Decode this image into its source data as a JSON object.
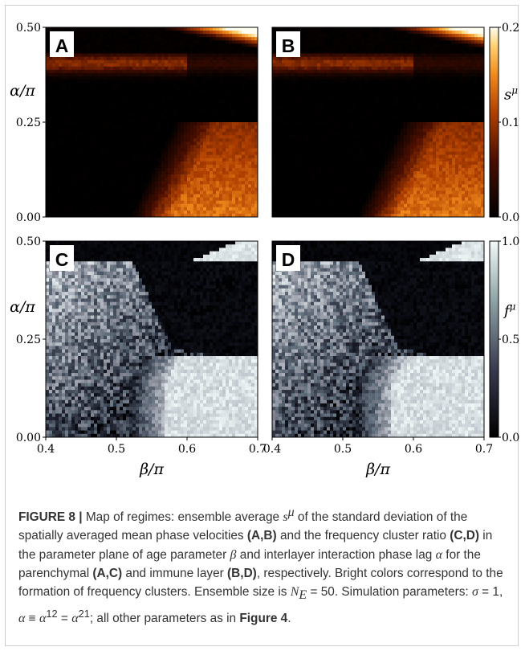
{
  "chart_data": {
    "type": "heatmap",
    "shared_x_tick_labels": [
      "0.4",
      "0.5",
      "0.6",
      "0.7"
    ],
    "x_range": [
      0.4,
      0.7
    ],
    "y_range": [
      0.0,
      0.5
    ],
    "y_tick_labels": [
      "0.00",
      "0.25",
      "0.50"
    ],
    "xlabel": "β/π",
    "ylabel": "α/π",
    "panels": [
      {
        "label": "A",
        "quantity": "s^μ",
        "colormap": "afmhot",
        "row": 1
      },
      {
        "label": "B",
        "quantity": "s^μ",
        "colormap": "afmhot",
        "row": 1
      },
      {
        "label": "C",
        "quantity": "f^μ",
        "colormap": "bone",
        "row": 2
      },
      {
        "label": "D",
        "quantity": "f^μ",
        "colormap": "bone",
        "row": 2
      }
    ],
    "colorbars": [
      {
        "label": "s^μ",
        "range": [
          0.0,
          0.2
        ],
        "tick_labels": [
          "0.0",
          "0.1",
          "0.2"
        ]
      },
      {
        "label": "f^μ",
        "range": [
          0.0,
          1.0
        ],
        "tick_labels": [
          "0.0",
          "0.5",
          "1.0"
        ]
      }
    ]
  },
  "caption": {
    "figure_label": "FIGURE 8",
    "separator": "|",
    "parts": [
      " Map of regimes: ensemble average ",
      "s",
      "μ",
      " of the standard deviation of the spatially averaged mean phase velocities ",
      "(A,B)",
      " and the frequency cluster ratio ",
      "(C,D)",
      " in the parameter plane of age parameter ",
      "β",
      " and interlayer interaction phase lag ",
      "α",
      " for the parenchymal ",
      "(A,C)",
      " and immune layer ",
      "(B,D)",
      ", respectively. Bright colors correspond to the formation of frequency clusters. Ensemble size is ",
      "N",
      "E",
      " = 50. Simulation parameters: ",
      "σ",
      " = 1, ",
      "α",
      " ≡ ",
      "α",
      "12",
      " = ",
      "α",
      "21",
      "; all other parameters as in ",
      "Figure 4",
      "."
    ]
  },
  "colors": {
    "hot_low": "#000000",
    "hot_mid": "#c24a00",
    "hot_high": "#fffbe8",
    "bone_low": "#000000",
    "bone_high": "#f0f7f7",
    "caption_text": "#333333"
  }
}
